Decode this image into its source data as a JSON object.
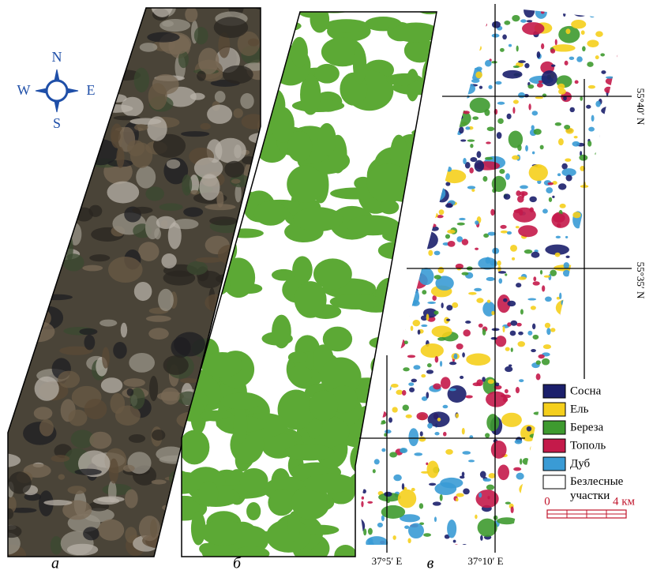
{
  "compass": {
    "n": "N",
    "e": "E",
    "s": "S",
    "w": "W"
  },
  "panels": [
    {
      "label": "а"
    },
    {
      "label": "б"
    },
    {
      "label": "в"
    }
  ],
  "map_c": {
    "lat_labels": [
      "55°40′ N",
      "55°35′ N"
    ],
    "lon_labels": [
      "37°5′ E",
      "37°10′ E"
    ],
    "legend": [
      {
        "label": "Сосна",
        "color": "#1b1f6b"
      },
      {
        "label": "Ель",
        "color": "#f5cf1c"
      },
      {
        "label": "Береза",
        "color": "#3e9a2f"
      },
      {
        "label": "Тополь",
        "color": "#c41a4a"
      },
      {
        "label": "Дуб",
        "color": "#3a9bd5"
      },
      {
        "label": "Безлесные участки",
        "color": "#ffffff"
      }
    ],
    "scale": {
      "labels": [
        "0",
        "4 км"
      ]
    }
  }
}
